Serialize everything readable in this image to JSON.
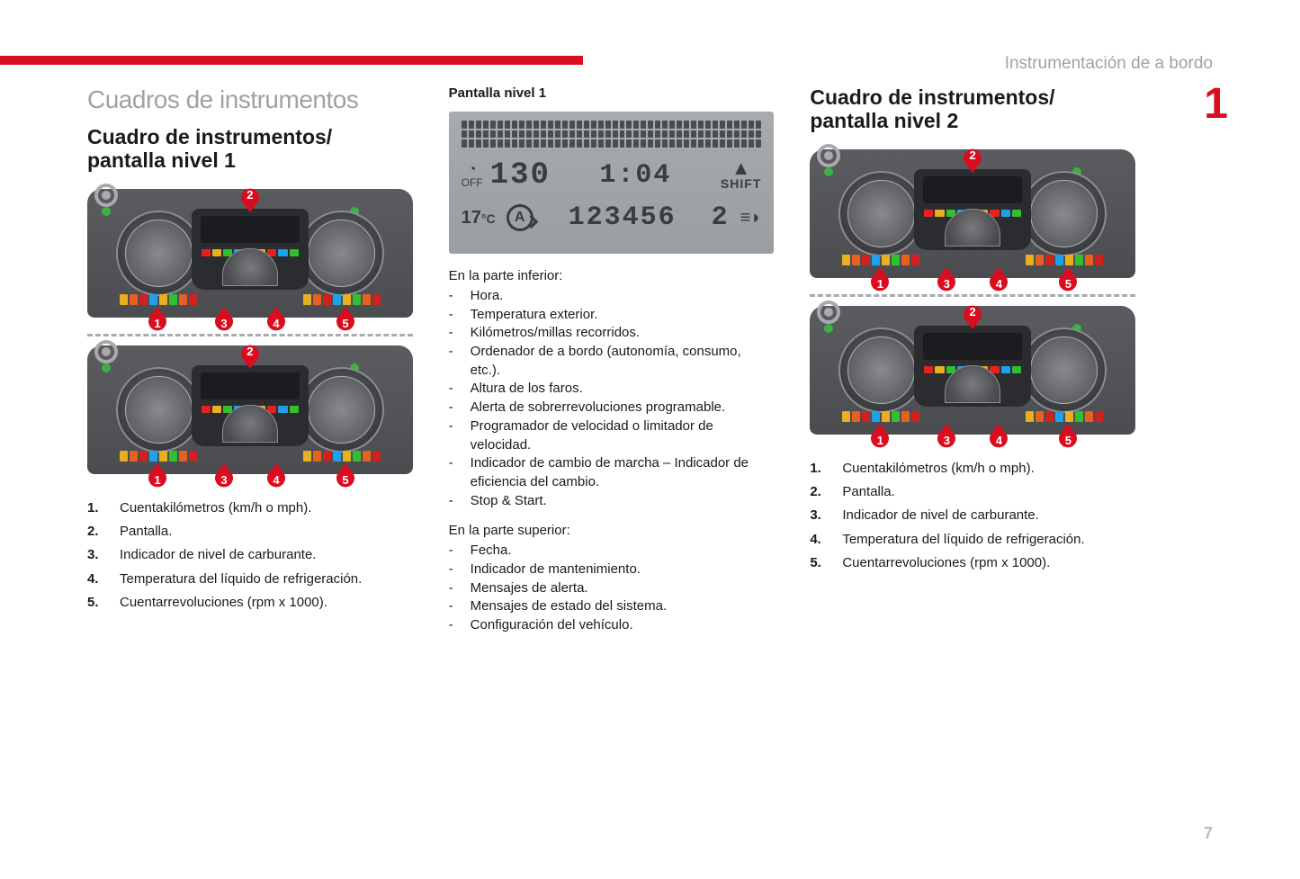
{
  "colors": {
    "accent": "#da0c1f",
    "muted_text": "#9fa1a4",
    "page_num": "#b8babe",
    "body_text": "#1a1a1a",
    "lcd_bg": "#a8abae",
    "lcd_fg": "#3a3c40",
    "dash_bg_top": "#5a5c60",
    "dash_bg_bottom": "#4a4c50"
  },
  "header": {
    "section": "Instrumentación de a bordo",
    "chapter_number": "1",
    "page_number": "7"
  },
  "col1": {
    "title": "Cuadros de instrumentos",
    "subtitle": "Cuadro de instrumentos/ pantalla nivel 1",
    "markers_top": [
      "2"
    ],
    "markers_bottom": [
      "1",
      "3",
      "4",
      "5"
    ],
    "legend": [
      {
        "n": "1.",
        "text": "Cuentakilómetros (km/h o mph)."
      },
      {
        "n": "2.",
        "text": "Pantalla."
      },
      {
        "n": "3.",
        "text": "Indicador de nivel de carburante."
      },
      {
        "n": "4.",
        "text": "Temperatura del líquido de refrigeración."
      },
      {
        "n": "5.",
        "text": "Cuentarrevoluciones (rpm x 1000)."
      }
    ]
  },
  "col2": {
    "lcd_title": "Pantalla nivel 1",
    "lcd": {
      "off_label": "OFF",
      "speed": "130",
      "clock": "1:04",
      "shift_arrow": "▲",
      "shift_label": "SHIFT",
      "temp": "17",
      "temp_unit": "°C",
      "auto_letter": "A",
      "odometer": "123456",
      "gear": "2",
      "headlight_icon": "≡◗"
    },
    "lower_heading": "En la parte inferior:",
    "lower_items": [
      "Hora.",
      "Temperatura exterior.",
      "Kilómetros/millas recorridos.",
      "Ordenador de a bordo (autonomía, consumo, etc.).",
      "Altura de los faros.",
      "Alerta de sobrerrevoluciones programable.",
      "Programador de velocidad o limitador de velocidad.",
      "Indicador de cambio de marcha – Indicador de eficiencia del cambio.",
      "Stop & Start."
    ],
    "upper_heading": "En la parte superior:",
    "upper_items": [
      "Fecha.",
      "Indicador de mantenimiento.",
      "Mensajes de alerta.",
      "Mensajes de estado del sistema.",
      "Configuración del vehículo."
    ]
  },
  "col3": {
    "subtitle": "Cuadro de instrumentos/ pantalla nivel 2",
    "markers_top": [
      "2"
    ],
    "markers_bottom": [
      "1",
      "3",
      "4",
      "5"
    ],
    "legend": [
      {
        "n": "1.",
        "text": "Cuentakilómetros (km/h o mph)."
      },
      {
        "n": "2.",
        "text": "Pantalla."
      },
      {
        "n": "3.",
        "text": "Indicador de nivel de carburante."
      },
      {
        "n": "4.",
        "text": "Temperatura del líquido de refrigeración."
      },
      {
        "n": "5.",
        "text": "Cuentarrevoluciones (rpm x 1000)."
      }
    ]
  },
  "warn_colors": [
    "#e8b020",
    "#e86020",
    "#d02020",
    "#20a0e8",
    "#e8b020",
    "#30c030",
    "#e86020",
    "#d02020"
  ],
  "led_colors": [
    "#e82020",
    "#e8b020",
    "#30c030",
    "#20a0e8",
    "#30c030",
    "#e8b020",
    "#e82020",
    "#20a0e8",
    "#30c030"
  ]
}
